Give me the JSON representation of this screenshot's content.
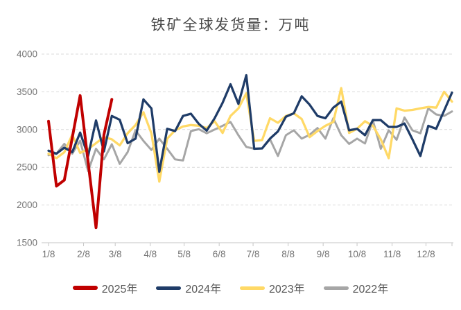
{
  "title": "铁矿全球发货量：万吨",
  "axis": {
    "y_tick_labels": [
      "1500",
      "2000",
      "2500",
      "3000",
      "3500",
      "4000"
    ],
    "x_tick_labels": [
      "1/8",
      "2/8",
      "3/8",
      "4/8",
      "5/8",
      "6/8",
      "7/8",
      "8/8",
      "9/8",
      "10/8",
      "11/8",
      "12/8"
    ]
  },
  "colors": {
    "red_2025": "#c00000",
    "navy_2024": "#1f3c68",
    "yellow_2023": "#ffd966",
    "gray_2022": "#a6a6a6",
    "gridline": "#d9d9d9",
    "axis_line": "#c6c6c6",
    "tick_text": "#737373",
    "title_text": "#4a4a4a",
    "legend_text": "#595959"
  },
  "legend": {
    "items": [
      {
        "label": "2025年",
        "color": "#c00000"
      },
      {
        "label": "2024年",
        "color": "#1f3c68"
      },
      {
        "label": "2023年",
        "color": "#ffd966"
      },
      {
        "label": "2022年",
        "color": "#a6a6a6"
      }
    ]
  },
  "chart_data": {
    "type": "line",
    "title": "铁矿全球发货量：万吨",
    "unit": "万吨",
    "ylim": [
      1500,
      4000
    ],
    "y_tick_step": 500,
    "grid": "horizontal-dashed",
    "legend_position": "bottom",
    "x_start_label": "1/8",
    "x_frequency": "weekly",
    "x_tick_labels": [
      "1/8",
      "2/8",
      "3/8",
      "4/8",
      "5/8",
      "6/8",
      "7/8",
      "8/8",
      "9/8",
      "10/8",
      "11/8",
      "12/8"
    ],
    "series": [
      {
        "name": "2025年",
        "color": "#c00000",
        "stroke_width": 4,
        "values": [
          3110,
          2250,
          2330,
          2890,
          3450,
          2570,
          1700,
          2930,
          3400
        ]
      },
      {
        "name": "2024年",
        "color": "#1f3c68",
        "stroke_width": 3.3,
        "values": [
          2720,
          2680,
          2760,
          2700,
          2960,
          2650,
          3120,
          2710,
          3180,
          3130,
          2820,
          2880,
          3400,
          3280,
          2440,
          3010,
          2980,
          3180,
          3210,
          3075,
          2985,
          3150,
          3355,
          3600,
          3340,
          3720,
          2745,
          2750,
          2880,
          2975,
          3170,
          3215,
          3440,
          3330,
          3180,
          3150,
          3290,
          3370,
          2990,
          3010,
          2925,
          3125,
          3125,
          3035,
          3035,
          3080,
          2870,
          2650,
          3050,
          3010,
          3250,
          3490
        ]
      },
      {
        "name": "2023年",
        "color": "#ffd966",
        "stroke_width": 3.3,
        "values": [
          2680,
          2620,
          2700,
          2930,
          2690,
          2740,
          2820,
          2900,
          2870,
          2790,
          2950,
          3060,
          3230,
          2950,
          2310,
          2880,
          2990,
          3040,
          3060,
          3050,
          3020,
          3110,
          2955,
          3180,
          3280,
          3480,
          2850,
          2860,
          3150,
          3090,
          3180,
          3215,
          3140,
          2900,
          2980,
          3050,
          3100,
          3550,
          2955,
          3010,
          3110,
          3050,
          2870,
          2620,
          3280,
          3250,
          3260,
          3280,
          3300,
          3290,
          3500,
          3370
        ]
      },
      {
        "name": "2022年",
        "color": "#a6a6a6",
        "stroke_width": 3,
        "values": [
          2660,
          2680,
          2810,
          2680,
          2850,
          2450,
          2745,
          2605,
          2805,
          2545,
          2700,
          2990,
          2850,
          2730,
          2880,
          2745,
          2605,
          2590,
          2980,
          3005,
          2950,
          3000,
          3050,
          3100,
          2925,
          2770,
          2745,
          2750,
          2870,
          2650,
          2925,
          2990,
          2880,
          2930,
          3020,
          2880,
          3150,
          2925,
          2810,
          2880,
          2815,
          3120,
          2745,
          2990,
          2865,
          3160,
          2990,
          2950,
          3280,
          3200,
          3180,
          3240
        ]
      }
    ]
  }
}
